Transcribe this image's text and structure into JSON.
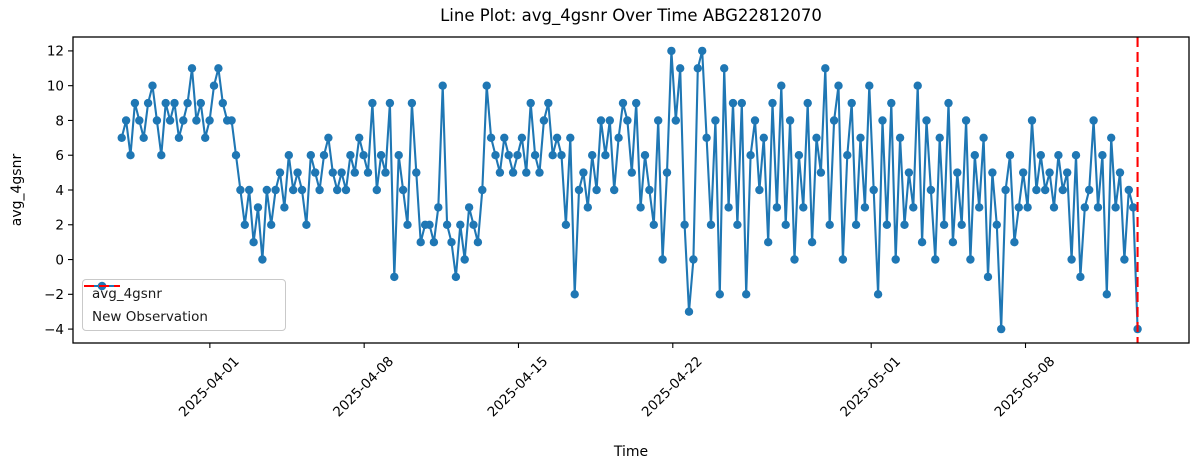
{
  "figure": {
    "title": "Line Plot: avg_4gsnr Over Time ABG22812070",
    "xlabel": "Time",
    "ylabel": "avg_4gsnr"
  },
  "legend": {
    "series_label": "avg_4gsnr",
    "new_observation_label": "New Observation"
  },
  "chart_data": {
    "type": "line",
    "title": "Line Plot: avg_4gsnr Over Time ABG22812070",
    "xlabel": "Time",
    "ylabel": "avg_4gsnr",
    "series_name": "avg_4gsnr",
    "line_color": "#1f77b4",
    "marker": "circle",
    "grid": false,
    "legend_position": "lower left",
    "ylim": [
      -4.8,
      12.8
    ],
    "xlim": [
      "2025-03-25T19:00:00",
      "2025-05-15T10:00:00"
    ],
    "y_ticks": [
      {
        "value": -4,
        "label": "−4"
      },
      {
        "value": -2,
        "label": "−2"
      },
      {
        "value": 0,
        "label": "0"
      },
      {
        "value": 2,
        "label": "2"
      },
      {
        "value": 4,
        "label": "4"
      },
      {
        "value": 6,
        "label": "6"
      },
      {
        "value": 8,
        "label": "8"
      },
      {
        "value": 10,
        "label": "10"
      },
      {
        "value": 12,
        "label": "12"
      }
    ],
    "x_ticks": [
      {
        "date": "2025-04-01T00:00:00",
        "label": "2025-04-01"
      },
      {
        "date": "2025-04-08T00:00:00",
        "label": "2025-04-08"
      },
      {
        "date": "2025-04-15T00:00:00",
        "label": "2025-04-15"
      },
      {
        "date": "2025-04-22T00:00:00",
        "label": "2025-04-22"
      },
      {
        "date": "2025-05-01T00:00:00",
        "label": "2025-05-01"
      },
      {
        "date": "2025-05-08T00:00:00",
        "label": "2025-05-08"
      }
    ],
    "x_start": "2025-03-28T00:00:00",
    "x_end": "2025-05-13T02:00:00",
    "values": [
      7,
      8,
      6,
      9,
      8,
      7,
      9,
      10,
      8,
      6,
      9,
      8,
      9,
      7,
      8,
      9,
      11,
      8,
      9,
      7,
      8,
      10,
      11,
      9,
      8,
      8,
      6,
      4,
      2,
      4,
      1,
      3,
      0,
      4,
      2,
      4,
      5,
      3,
      6,
      4,
      5,
      4,
      2,
      6,
      5,
      4,
      6,
      7,
      5,
      4,
      5,
      4,
      6,
      5,
      7,
      6,
      5,
      9,
      4,
      6,
      5,
      9,
      -1,
      6,
      4,
      2,
      9,
      5,
      1,
      2,
      2,
      1,
      3,
      10,
      2,
      1,
      -1,
      2,
      0,
      3,
      2,
      1,
      4,
      10,
      7,
      6,
      5,
      7,
      6,
      5,
      6,
      7,
      5,
      9,
      6,
      5,
      8,
      9,
      6,
      7,
      6,
      2,
      7,
      -2,
      4,
      5,
      3,
      6,
      4,
      8,
      6,
      8,
      4,
      7,
      9,
      8,
      5,
      9,
      3,
      6,
      4,
      2,
      8,
      0,
      5,
      12,
      8,
      11,
      2,
      -3,
      0,
      11,
      12,
      7,
      2,
      8,
      -2,
      11,
      3,
      9,
      2,
      9,
      -2,
      6,
      8,
      4,
      7,
      1,
      9,
      3,
      10,
      2,
      8,
      0,
      6,
      3,
      9,
      1,
      7,
      5,
      11,
      2,
      8,
      10,
      0,
      6,
      9,
      2,
      7,
      3,
      10,
      4,
      -2,
      8,
      2,
      9,
      0,
      7,
      2,
      5,
      3,
      10,
      1,
      8,
      4,
      0,
      7,
      2,
      9,
      1,
      5,
      2,
      8,
      0,
      6,
      3,
      7,
      -1,
      5,
      2,
      -4,
      4,
      6,
      1,
      3,
      5,
      3,
      8,
      4,
      6,
      4,
      5,
      3,
      6,
      4,
      5,
      0,
      6,
      -1,
      3,
      4,
      8,
      3,
      6,
      -2,
      7,
      3,
      5,
      0,
      4,
      3,
      -4
    ],
    "new_observation": {
      "label": "New Observation",
      "date": "2025-05-13T02:00:00",
      "color": "#ff0000",
      "style": "dashed"
    }
  }
}
